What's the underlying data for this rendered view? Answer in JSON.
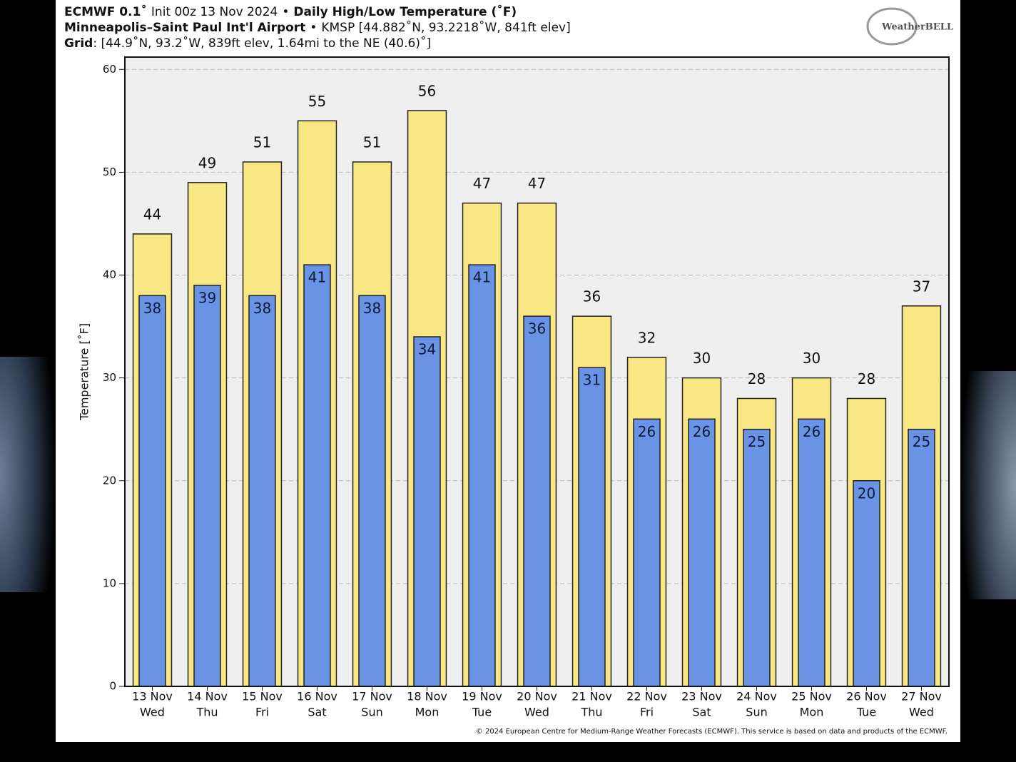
{
  "chart_data": {
    "type": "bar",
    "title": {
      "model": "ECMWF 0.1˚",
      "init": "Init 00z 13 Nov 2024",
      "separator": "•",
      "product": "Daily High/Low Temperature (˚F)"
    },
    "station": {
      "name": "Minneapolis–Saint Paul Int'l Airport",
      "details": "KMSP [44.882˚N, 93.2218˚W, 841ft elev]"
    },
    "grid_point": {
      "label": "Grid",
      "details": ": [44.9˚N, 93.2˚W, 839ft elev, 1.64mi to the NE (40.6)˚]"
    },
    "logo": "WeatherBELL",
    "y_label": "Temperature [˚F]",
    "copyright": "© 2024 European Centre for Medium-Range Weather Forecasts (ECMWF). This service is based on data and products of the ECMWF.",
    "categories": [
      "13 Nov",
      "14 Nov",
      "15 Nov",
      "16 Nov",
      "17 Nov",
      "18 Nov",
      "19 Nov",
      "20 Nov",
      "21 Nov",
      "22 Nov",
      "23 Nov",
      "24 Nov",
      "25 Nov",
      "26 Nov",
      "27 Nov"
    ],
    "weekdays": [
      "Wed",
      "Thu",
      "Fri",
      "Sat",
      "Sun",
      "Mon",
      "Tue",
      "Wed",
      "Thu",
      "Fri",
      "Sat",
      "Sun",
      "Mon",
      "Tue",
      "Wed"
    ],
    "high_values": [
      44,
      49,
      51,
      55,
      51,
      56,
      47,
      47,
      36,
      32,
      30,
      28,
      30,
      28,
      37
    ],
    "low_values": [
      38,
      39,
      38,
      41,
      38,
      34,
      41,
      36,
      31,
      26,
      26,
      25,
      26,
      20,
      25
    ],
    "high_color": "#f9e784",
    "low_color": "#6a93e6",
    "ylim": [
      0,
      61.2
    ],
    "yticks": [
      0,
      10,
      20,
      30,
      40,
      50,
      60
    ],
    "grid": true
  }
}
